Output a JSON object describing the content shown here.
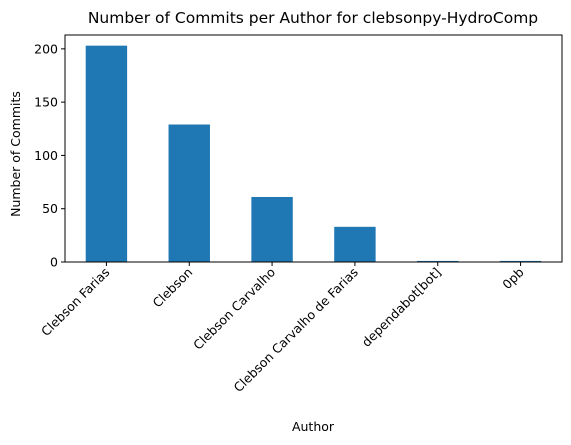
{
  "chart_data": {
    "type": "bar",
    "title": "Number of Commits per Author for clebsonpy-HydroComp",
    "xlabel": "Author",
    "ylabel": "Number of Commits",
    "categories": [
      "Clebson Farias",
      "Clebson",
      "Clebson Carvalho",
      "Clebson Carvalho de Farias",
      "dependabot[bot]",
      "0pb"
    ],
    "values": [
      203,
      129,
      61,
      33,
      1,
      1
    ],
    "ylim": [
      0,
      213
    ],
    "yticks": [
      0,
      50,
      100,
      150,
      200
    ],
    "grid": false,
    "legend": "none",
    "bar_color": "#1f77b4"
  }
}
